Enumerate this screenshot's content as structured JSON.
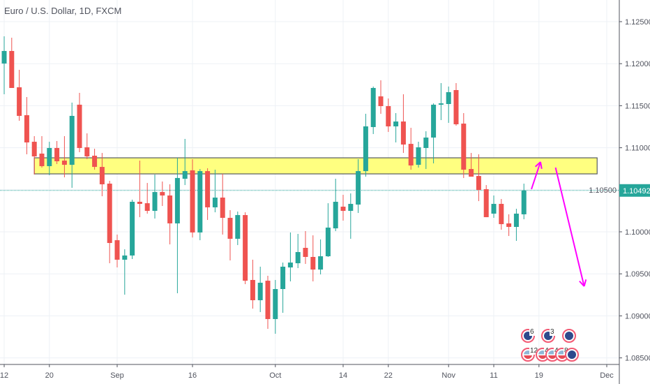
{
  "header": {
    "title": "Euro / U.S. Dollar, 1D, FXCM"
  },
  "colors": {
    "up": "#26a69a",
    "down": "#ef5350",
    "zone_fill": "#ffff80",
    "zone_border": "#555a60",
    "arrow": "#ff00ff",
    "last_price_bg": "#26a69a",
    "grid": "#edf1f6"
  },
  "chart_data": {
    "type": "candlestick",
    "title": "Euro / U.S. Dollar, 1D, FXCM",
    "ylim": [
      1.0845,
      1.1275
    ],
    "grid": true,
    "y_ticks": [
      "1.12500",
      "1.12000",
      "1.11500",
      "1.11000",
      "1.10500",
      "1.10000",
      "1.09500",
      "1.09000",
      "1.08500"
    ],
    "x_ticks": [
      {
        "label": "12",
        "bar": 0
      },
      {
        "label": "20",
        "bar": 6
      },
      {
        "label": "Sep",
        "bar": 15
      },
      {
        "label": "16",
        "bar": 25
      },
      {
        "label": "Oct",
        "bar": 36
      },
      {
        "label": "14",
        "bar": 45
      },
      {
        "label": "22",
        "bar": 51
      },
      {
        "label": "Nov",
        "bar": 59
      },
      {
        "label": "11",
        "bar": 65
      },
      {
        "label": "19",
        "bar": 71
      },
      {
        "label": "Dec",
        "bar": 80
      }
    ],
    "last_price": "1.10492",
    "ohlc": [
      [
        1.12002,
        1.12326,
        1.11636,
        1.12151
      ],
      [
        1.12151,
        1.12309,
        1.11711,
        1.11711
      ],
      [
        1.11719,
        1.11927,
        1.11321,
        1.11379
      ],
      [
        1.11387,
        1.11603,
        1.10922,
        1.11063
      ],
      [
        1.11071,
        1.11138,
        1.10681,
        1.10897
      ],
      [
        1.1093,
        1.11138,
        1.10764,
        1.10781
      ],
      [
        1.10781,
        1.11071,
        1.10673,
        1.10997
      ],
      [
        1.10997,
        1.1108,
        1.10806,
        1.10839
      ],
      [
        1.10847,
        1.11138,
        1.10648,
        1.10797
      ],
      [
        1.10797,
        1.11537,
        1.10523,
        1.11379
      ],
      [
        1.11512,
        1.11653,
        1.10947,
        1.10997
      ],
      [
        1.11005,
        1.11171,
        1.10864,
        1.10897
      ],
      [
        1.10905,
        1.10988,
        1.10739,
        1.10772
      ],
      [
        1.10772,
        1.10938,
        1.10423,
        1.10565
      ],
      [
        1.10573,
        1.10606,
        1.09626,
        1.09867
      ],
      [
        1.099,
        1.09967,
        1.09576,
        1.09668
      ],
      [
        1.09668,
        1.09792,
        1.09252,
        1.09718
      ],
      [
        1.09718,
        1.10382,
        1.09676,
        1.10357
      ],
      [
        1.10357,
        1.10847,
        1.10174,
        1.10332
      ],
      [
        1.1034,
        1.10581,
        1.10216,
        1.10249
      ],
      [
        1.10249,
        1.10681,
        1.10158,
        1.10473
      ],
      [
        1.10473,
        1.10598,
        1.10307,
        1.10432
      ],
      [
        1.10432,
        1.10565,
        1.0985,
        1.101
      ],
      [
        1.101,
        1.1088,
        1.09269,
        1.1064
      ],
      [
        1.10631,
        1.11105,
        1.10556,
        1.10722
      ],
      [
        1.10731,
        1.10864,
        1.09933,
        1.09992
      ],
      [
        1.09992,
        1.10747,
        1.099,
        1.10722
      ],
      [
        1.10722,
        1.10756,
        1.10141,
        1.10291
      ],
      [
        1.10291,
        1.10739,
        1.10232,
        1.10407
      ],
      [
        1.10407,
        1.10689,
        1.09967,
        1.10166
      ],
      [
        1.10166,
        1.10257,
        1.09659,
        1.09917
      ],
      [
        1.09917,
        1.10241,
        1.09842,
        1.10199
      ],
      [
        1.10199,
        1.10232,
        1.09377,
        1.09418
      ],
      [
        1.09427,
        1.09668,
        1.09086,
        1.09186
      ],
      [
        1.09186,
        1.09585,
        1.09045,
        1.09394
      ],
      [
        1.09418,
        1.09477,
        1.08845,
        1.08962
      ],
      [
        1.08962,
        1.09427,
        1.08787,
        1.09319
      ],
      [
        1.09319,
        1.09634,
        1.09036,
        1.09585
      ],
      [
        1.09576,
        1.09992,
        1.0941,
        1.09634
      ],
      [
        1.09626,
        1.09975,
        1.09568,
        1.09759
      ],
      [
        1.09809,
        1.10008,
        1.09618,
        1.09701
      ],
      [
        1.09701,
        1.09958,
        1.0941,
        1.09551
      ],
      [
        1.09551,
        1.09909,
        1.09493,
        1.09709
      ],
      [
        1.09709,
        1.1034,
        1.09701,
        1.1005
      ],
      [
        1.10041,
        1.10631,
        1.10008,
        1.10357
      ],
      [
        1.10299,
        1.1044,
        1.10133,
        1.10249
      ],
      [
        1.10249,
        1.10457,
        1.09917,
        1.10332
      ],
      [
        1.10324,
        1.10864,
        1.10224,
        1.10722
      ],
      [
        1.10722,
        1.11404,
        1.10656,
        1.11254
      ],
      [
        1.11246,
        1.11728,
        1.11163,
        1.11711
      ],
      [
        1.11611,
        1.11802,
        1.11404,
        1.11495
      ],
      [
        1.11495,
        1.11586,
        1.11188,
        1.11254
      ],
      [
        1.11254,
        1.11412,
        1.11063,
        1.11312
      ],
      [
        1.11312,
        1.11636,
        1.10938,
        1.11038
      ],
      [
        1.11046,
        1.11237,
        1.10739,
        1.10789
      ],
      [
        1.10797,
        1.11071,
        1.10764,
        1.11005
      ],
      [
        1.10997,
        1.11196,
        1.10747,
        1.11121
      ],
      [
        1.11121,
        1.11528,
        1.10814,
        1.11512
      ],
      [
        1.11512,
        1.11769,
        1.11329,
        1.11528
      ],
      [
        1.1152,
        1.11728,
        1.11296,
        1.11661
      ],
      [
        1.11686,
        1.11769,
        1.11262,
        1.11279
      ],
      [
        1.11287,
        1.11412,
        1.1064,
        1.10739
      ],
      [
        1.10747,
        1.10938,
        1.10656,
        1.10656
      ],
      [
        1.10664,
        1.10922,
        1.10365,
        1.10498
      ],
      [
        1.10507,
        1.10556,
        1.10174,
        1.10174
      ],
      [
        1.10216,
        1.10432,
        1.10166,
        1.10332
      ],
      [
        1.10332,
        1.1039,
        1.10025,
        1.10091
      ],
      [
        1.101,
        1.10208,
        1.0995,
        1.10058
      ],
      [
        1.10058,
        1.10274,
        1.09892,
        1.10216
      ],
      [
        1.10208,
        1.10573,
        1.10149,
        1.10492
      ]
    ],
    "zone": {
      "from_bar": 4,
      "to_bar": 79,
      "top": 1.1088,
      "bottom": 1.10689
    },
    "arrows": [
      {
        "from": [
          70,
          1.10507
        ],
        "to": [
          71.2,
          1.10831
        ]
      },
      {
        "from": [
          73.2,
          1.10764
        ],
        "to": [
          77,
          1.09352
        ]
      }
    ]
  },
  "events": [
    {
      "type": "eu",
      "count": "6"
    },
    {
      "type": "eu",
      "count": "3"
    },
    {
      "type": "eu",
      "count": ""
    },
    {
      "type": "us",
      "count": "12"
    },
    {
      "type": "us",
      "count": "4"
    },
    {
      "type": "us",
      "count": "4"
    },
    {
      "type": "us",
      "count": "8"
    },
    {
      "type": "eu",
      "count": ""
    }
  ]
}
